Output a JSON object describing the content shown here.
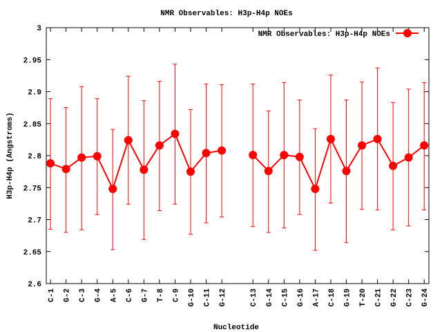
{
  "chart_data": {
    "type": "line",
    "title": "NMR Observables: H3p-H4p NOEs",
    "xlabel": "Nucleotide",
    "ylabel": "H3p-H4p (Angstroms)",
    "ylim": [
      2.6,
      3.0
    ],
    "yticks": [
      "2.6",
      "2.65",
      "2.7",
      "2.75",
      "2.8",
      "2.85",
      "2.9",
      "2.95",
      "3"
    ],
    "legend": {
      "label": "NMR Observables: H3p-H4p NOEs",
      "position": "top-right"
    },
    "color": "#ff0000",
    "categories": [
      "C-1",
      "G-2",
      "C-3",
      "G-4",
      "A-5",
      "C-6",
      "G-7",
      "T-8",
      "C-9",
      "G-10",
      "C-11",
      "G-12",
      "C-13",
      "G-14",
      "C-15",
      "G-16",
      "A-17",
      "C-18",
      "G-19",
      "T-20",
      "C-21",
      "G-22",
      "C-23",
      "G-24"
    ],
    "x": [
      1,
      2,
      3,
      4,
      5,
      6,
      7,
      8,
      9,
      10,
      11,
      12,
      14,
      15,
      16,
      17,
      18,
      19,
      20,
      21,
      22,
      23,
      24,
      25
    ],
    "xlim": [
      0.73,
      25.3
    ],
    "series": [
      {
        "name": "NMR Observables: H3p-H4p NOEs",
        "values": [
          2.788,
          2.779,
          2.797,
          2.799,
          2.748,
          2.824,
          2.778,
          2.816,
          2.834,
          2.775,
          2.804,
          2.808,
          2.801,
          2.776,
          2.801,
          2.798,
          2.748,
          2.826,
          2.776,
          2.816,
          2.826,
          2.784,
          2.797,
          2.816
        ],
        "err_high": [
          2.889,
          2.875,
          2.908,
          2.889,
          2.841,
          2.924,
          2.886,
          2.916,
          2.943,
          2.872,
          2.912,
          2.911,
          2.912,
          2.87,
          2.914,
          2.887,
          2.842,
          2.926,
          2.887,
          2.915,
          2.937,
          2.883,
          2.904,
          2.914
        ],
        "err_low": [
          2.685,
          2.68,
          2.684,
          2.708,
          2.653,
          2.724,
          2.669,
          2.714,
          2.724,
          2.677,
          2.695,
          2.704,
          2.689,
          2.68,
          2.687,
          2.708,
          2.652,
          2.726,
          2.664,
          2.716,
          2.715,
          2.684,
          2.69,
          2.715
        ]
      }
    ]
  }
}
